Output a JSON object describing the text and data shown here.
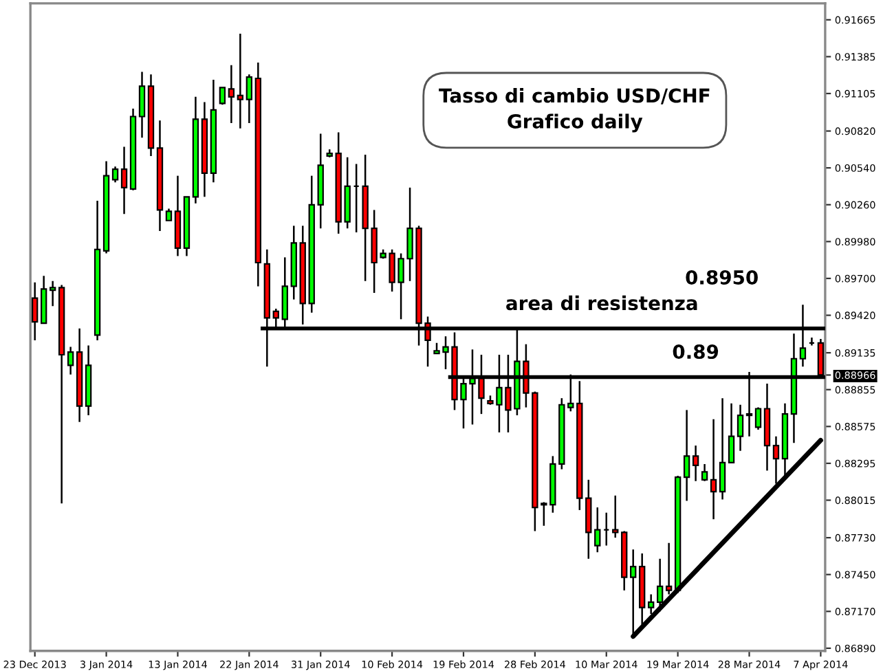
{
  "chart_data": {
    "type": "candlestick",
    "title": "Tasso di cambio USD/CHF\nGrafico daily",
    "categories": [
      "23 Dec 2013",
      null,
      null,
      null,
      null,
      null,
      null,
      null,
      "3 Jan 2014",
      null,
      null,
      null,
      null,
      null,
      null,
      null,
      "13 Jan 2014",
      null,
      null,
      null,
      null,
      null,
      null,
      null,
      "22 Jan 2014",
      null,
      null,
      null,
      null,
      null,
      null,
      null,
      "31 Jan 2014",
      null,
      null,
      null,
      null,
      null,
      null,
      null,
      "10 Feb 2014",
      null,
      null,
      null,
      null,
      null,
      null,
      null,
      "19 Feb 2014",
      null,
      null,
      null,
      null,
      null,
      null,
      null,
      "28 Feb 2014",
      null,
      null,
      null,
      null,
      null,
      null,
      null,
      "10 Mar 2014",
      null,
      null,
      null,
      null,
      null,
      null,
      null,
      "19 Mar 2014",
      null,
      null,
      null,
      null,
      null,
      null,
      null,
      "28 Mar 2014",
      null,
      null,
      null,
      null,
      null,
      null,
      null,
      "7 Apr 2014"
    ],
    "ohlc": [
      [
        0.8955,
        0.8967,
        0.8923,
        0.8937
      ],
      [
        0.8936,
        0.8972,
        0.8936,
        0.8962
      ],
      [
        0.8961,
        0.8968,
        0.8949,
        0.8963
      ],
      [
        0.8963,
        0.8965,
        0.8799,
        0.8912
      ],
      [
        0.8904,
        0.8918,
        0.8897,
        0.8914
      ],
      [
        0.8914,
        0.8932,
        0.8861,
        0.8873
      ],
      [
        0.8873,
        0.8919,
        0.8866,
        0.8904
      ],
      [
        0.8927,
        0.9029,
        0.8923,
        0.8992
      ],
      [
        0.8991,
        0.9059,
        0.8989,
        0.9048
      ],
      [
        0.9045,
        0.9055,
        0.9043,
        0.9053
      ],
      [
        0.9053,
        0.907,
        0.9019,
        0.9039
      ],
      [
        0.9038,
        0.9099,
        0.9037,
        0.9093
      ],
      [
        0.9093,
        0.9127,
        0.9077,
        0.9116
      ],
      [
        0.9116,
        0.9125,
        0.9063,
        0.9069
      ],
      [
        0.9069,
        0.909,
        0.9006,
        0.9022
      ],
      [
        0.9014,
        0.9023,
        0.9014,
        0.9021
      ],
      [
        0.9021,
        0.9048,
        0.8987,
        0.8993
      ],
      [
        0.8993,
        0.9032,
        0.8987,
        0.9032
      ],
      [
        0.9032,
        0.9108,
        0.9027,
        0.9091
      ],
      [
        0.9091,
        0.9104,
        0.9032,
        0.905
      ],
      [
        0.905,
        0.9121,
        0.9043,
        0.9098
      ],
      [
        0.9103,
        0.9115,
        0.9102,
        0.9115
      ],
      [
        0.9114,
        0.9132,
        0.9088,
        0.9108
      ],
      [
        0.9109,
        0.9156,
        0.9084,
        0.9106
      ],
      [
        0.9106,
        0.9125,
        0.9088,
        0.9123
      ],
      [
        0.9122,
        0.9134,
        0.8964,
        0.8982
      ],
      [
        0.8981,
        0.8992,
        0.8903,
        0.894
      ],
      [
        0.8945,
        0.8947,
        0.8932,
        0.894
      ],
      [
        0.8939,
        0.8986,
        0.8932,
        0.8964
      ],
      [
        0.8964,
        0.901,
        0.8954,
        0.8997
      ],
      [
        0.8997,
        0.901,
        0.8935,
        0.8951
      ],
      [
        0.8951,
        0.9048,
        0.8944,
        0.9026
      ],
      [
        0.9026,
        0.908,
        0.9008,
        0.9056
      ],
      [
        0.9063,
        0.9068,
        0.9062,
        0.9065
      ],
      [
        0.9065,
        0.9081,
        0.9004,
        0.9013
      ],
      [
        0.9013,
        0.9062,
        0.9008,
        0.904
      ],
      [
        0.904,
        0.9057,
        0.9005,
        0.904
      ],
      [
        0.904,
        0.9064,
        0.8968,
        0.9008
      ],
      [
        0.9008,
        0.9022,
        0.8959,
        0.8982
      ],
      [
        0.8986,
        0.8992,
        0.8985,
        0.8989
      ],
      [
        0.8989,
        0.8992,
        0.896,
        0.8967
      ],
      [
        0.8967,
        0.8989,
        0.8939,
        0.8985
      ],
      [
        0.8985,
        0.9039,
        0.8968,
        0.9008
      ],
      [
        0.9008,
        0.901,
        0.8919,
        0.8936
      ],
      [
        0.8936,
        0.8941,
        0.8903,
        0.8923
      ],
      [
        0.8913,
        0.8921,
        0.8913,
        0.8915
      ],
      [
        0.8914,
        0.8926,
        0.8901,
        0.8918
      ],
      [
        0.8918,
        0.8929,
        0.887,
        0.8878
      ],
      [
        0.8878,
        0.8896,
        0.8856,
        0.889
      ],
      [
        0.889,
        0.8916,
        0.8859,
        0.8894
      ],
      [
        0.8894,
        0.8912,
        0.8867,
        0.8879
      ],
      [
        0.8877,
        0.8881,
        0.8874,
        0.8875
      ],
      [
        0.8874,
        0.8912,
        0.8853,
        0.8887
      ],
      [
        0.8887,
        0.8912,
        0.8853,
        0.887
      ],
      [
        0.8871,
        0.8931,
        0.8866,
        0.8907
      ],
      [
        0.8907,
        0.892,
        0.8872,
        0.8883
      ],
      [
        0.8883,
        0.8884,
        0.8778,
        0.8796
      ],
      [
        0.8799,
        0.88,
        0.8782,
        0.8798
      ],
      [
        0.8798,
        0.8835,
        0.8792,
        0.8829
      ],
      [
        0.8829,
        0.8879,
        0.8825,
        0.8874
      ],
      [
        0.8872,
        0.8897,
        0.8869,
        0.8875
      ],
      [
        0.8875,
        0.8892,
        0.8794,
        0.8803
      ],
      [
        0.8803,
        0.8817,
        0.8757,
        0.8777
      ],
      [
        0.8767,
        0.8796,
        0.8762,
        0.8779
      ],
      [
        0.8779,
        0.8792,
        0.8767,
        0.8779
      ],
      [
        0.8779,
        0.8805,
        0.8773,
        0.8777
      ],
      [
        0.8777,
        0.8778,
        0.8733,
        0.8743
      ],
      [
        0.8743,
        0.8764,
        0.8698,
        0.8751
      ],
      [
        0.8751,
        0.8761,
        0.8707,
        0.872
      ],
      [
        0.872,
        0.873,
        0.8715,
        0.8724
      ],
      [
        0.8724,
        0.8757,
        0.8717,
        0.8736
      ],
      [
        0.8736,
        0.8769,
        0.873,
        0.8733
      ],
      [
        0.8733,
        0.882,
        0.8731,
        0.8819
      ],
      [
        0.8819,
        0.887,
        0.8801,
        0.8835
      ],
      [
        0.8835,
        0.8843,
        0.8816,
        0.8828
      ],
      [
        0.8817,
        0.8829,
        0.8816,
        0.8823
      ],
      [
        0.8817,
        0.8863,
        0.8787,
        0.8808
      ],
      [
        0.8808,
        0.8879,
        0.8802,
        0.883
      ],
      [
        0.883,
        0.8875,
        0.883,
        0.885
      ],
      [
        0.885,
        0.8874,
        0.8839,
        0.8866
      ],
      [
        0.8866,
        0.8899,
        0.885,
        0.8867
      ],
      [
        0.8857,
        0.8872,
        0.8855,
        0.8871
      ],
      [
        0.8871,
        0.889,
        0.8824,
        0.8843
      ],
      [
        0.8843,
        0.885,
        0.8814,
        0.8833
      ],
      [
        0.8833,
        0.8875,
        0.882,
        0.8867
      ],
      [
        0.8867,
        0.8928,
        0.8845,
        0.8909
      ],
      [
        0.8909,
        0.895,
        0.8903,
        0.8917
      ],
      [
        0.8921,
        0.8925,
        0.8919,
        0.8921
      ],
      [
        0.8921,
        0.8924,
        0.8895,
        0.88966
      ]
    ],
    "colors": [
      "#ff0000",
      "#00ff00",
      "#00ff00",
      "#ff0000",
      "#00ff00",
      "#ff0000",
      "#00ff00",
      "#00ff00",
      "#00ff00",
      "#00ff00",
      "#ff0000",
      "#00ff00",
      "#00ff00",
      "#ff0000",
      "#ff0000",
      "#00ff00",
      "#ff0000",
      "#00ff00",
      "#00ff00",
      "#ff0000",
      "#00ff00",
      "#00ff00",
      "#ff0000",
      "#ff0000",
      "#00ff00",
      "#ff0000",
      "#ff0000",
      "#ff0000",
      "#00ff00",
      "#00ff00",
      "#ff0000",
      "#00ff00",
      "#00ff00",
      "#00ff00",
      "#ff0000",
      "#00ff00",
      "#000000",
      "#ff0000",
      "#ff0000",
      "#00ff00",
      "#ff0000",
      "#00ff00",
      "#00ff00",
      "#ff0000",
      "#ff0000",
      "#00ff00",
      "#00ff00",
      "#ff0000",
      "#00ff00",
      "#00ff00",
      "#ff0000",
      "#ff0000",
      "#00ff00",
      "#ff0000",
      "#00ff00",
      "#ff0000",
      "#ff0000",
      "#ff0000",
      "#00ff00",
      "#00ff00",
      "#00ff00",
      "#ff0000",
      "#ff0000",
      "#00ff00",
      "#000000",
      "#ff0000",
      "#ff0000",
      "#00ff00",
      "#ff0000",
      "#00ff00",
      "#00ff00",
      "#ff0000",
      "#00ff00",
      "#00ff00",
      "#ff0000",
      "#00ff00",
      "#ff0000",
      "#00ff00",
      "#00ff00",
      "#00ff00",
      "#00ff00",
      "#00ff00",
      "#ff0000",
      "#ff0000",
      "#00ff00",
      "#00ff00",
      "#00ff00",
      "#000000",
      "#ff0000"
    ],
    "series": [
      {
        "type": "line",
        "color": "#000000",
        "values": [
          null,
          null,
          null,
          null,
          null,
          null,
          null,
          null,
          null,
          null,
          null,
          null,
          null,
          null,
          null,
          null,
          null,
          null,
          null,
          null,
          null,
          null,
          null,
          null,
          null,
          null,
          null,
          null,
          null,
          null,
          null,
          null,
          null,
          null,
          null,
          null,
          null,
          null,
          null,
          null,
          null,
          null,
          null,
          null,
          null,
          null,
          null,
          null,
          null,
          null,
          null,
          null,
          null,
          null,
          null,
          null,
          null,
          null,
          null,
          null,
          null,
          null,
          null,
          null,
          null,
          null,
          null,
          0.8698,
          null,
          null,
          null,
          null,
          null,
          null,
          null,
          null,
          null,
          null,
          null,
          null,
          null,
          null,
          null,
          null,
          null,
          null,
          null,
          null,
          0.8847
        ]
      }
    ],
    "ref_lines": [
      {
        "axis": "y",
        "value": 0.8932,
        "label": "area di resistenza",
        "color": "#000000"
      },
      {
        "axis": "y",
        "value": 0.8895,
        "label": "0.89",
        "color": "#000000"
      }
    ],
    "annotations": [
      "0.8950"
    ],
    "ylim": [
      0.8687,
      0.9179
    ],
    "yticks": [
      {
        "value": 0.91665,
        "label": "0.91665"
      },
      {
        "value": 0.91385,
        "label": "0.91385"
      },
      {
        "value": 0.91105,
        "label": "0.91105"
      },
      {
        "value": 0.9082,
        "label": "0.90820"
      },
      {
        "value": 0.9054,
        "label": "0.90540"
      },
      {
        "value": 0.9026,
        "label": "0.90260"
      },
      {
        "value": 0.8998,
        "label": "0.89980"
      },
      {
        "value": 0.897,
        "label": "0.89700"
      },
      {
        "value": 0.8942,
        "label": "0.89420"
      },
      {
        "value": 0.89135,
        "label": "0.89135"
      },
      {
        "value": 0.88966,
        "label": "0.88966"
      },
      {
        "value": 0.88855,
        "label": "0.88855"
      },
      {
        "value": 0.88575,
        "label": "0.88575"
      },
      {
        "value": 0.88295,
        "label": "0.88295"
      },
      {
        "value": 0.88015,
        "label": "0.88015"
      },
      {
        "value": 0.8773,
        "label": "0.87730"
      },
      {
        "value": 0.8745,
        "label": "0.87450"
      },
      {
        "value": 0.8717,
        "label": "0.87170"
      },
      {
        "value": 0.8689,
        "label": "0.86890"
      }
    ],
    "grid": false
  }
}
